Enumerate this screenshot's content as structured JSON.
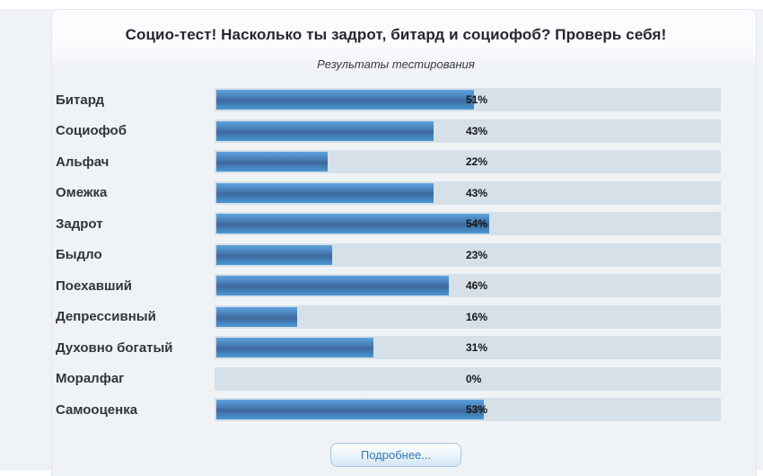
{
  "header": {
    "title": "Социо-тест! Насколько ты задрот, битард и социофоб? Проверь себя!",
    "subtitle": "Результаты тестирования"
  },
  "chart_data": {
    "type": "bar",
    "orientation": "horizontal",
    "title": "Результаты тестирования",
    "categories": [
      "Битард",
      "Социофоб",
      "Альфач",
      "Омежка",
      "Задрот",
      "Быдло",
      "Поехавший",
      "Депрессивный",
      "Духовно богатый",
      "Моралфаг",
      "Самооценка"
    ],
    "values": [
      51,
      43,
      22,
      43,
      54,
      23,
      46,
      16,
      31,
      0,
      53
    ],
    "value_suffix": "%",
    "xlim": [
      0,
      100
    ],
    "grid": false,
    "legend": false
  },
  "footer": {
    "details_button_label": "Подробнее..."
  },
  "colors": {
    "page_background": "#f0f3f6",
    "card_header_background": "#fbfcfe",
    "card_border": "#e2e7eb",
    "bar_track": "#d5e0e9",
    "bar_fill_top": "#5ea3de",
    "bar_fill_middle": "#3e689b",
    "bar_fill_bottom": "#4d97d2",
    "label_text": "#31353d",
    "value_text": "#161616",
    "button_text": "#2e78b8",
    "button_border": "#a6c9e5"
  }
}
